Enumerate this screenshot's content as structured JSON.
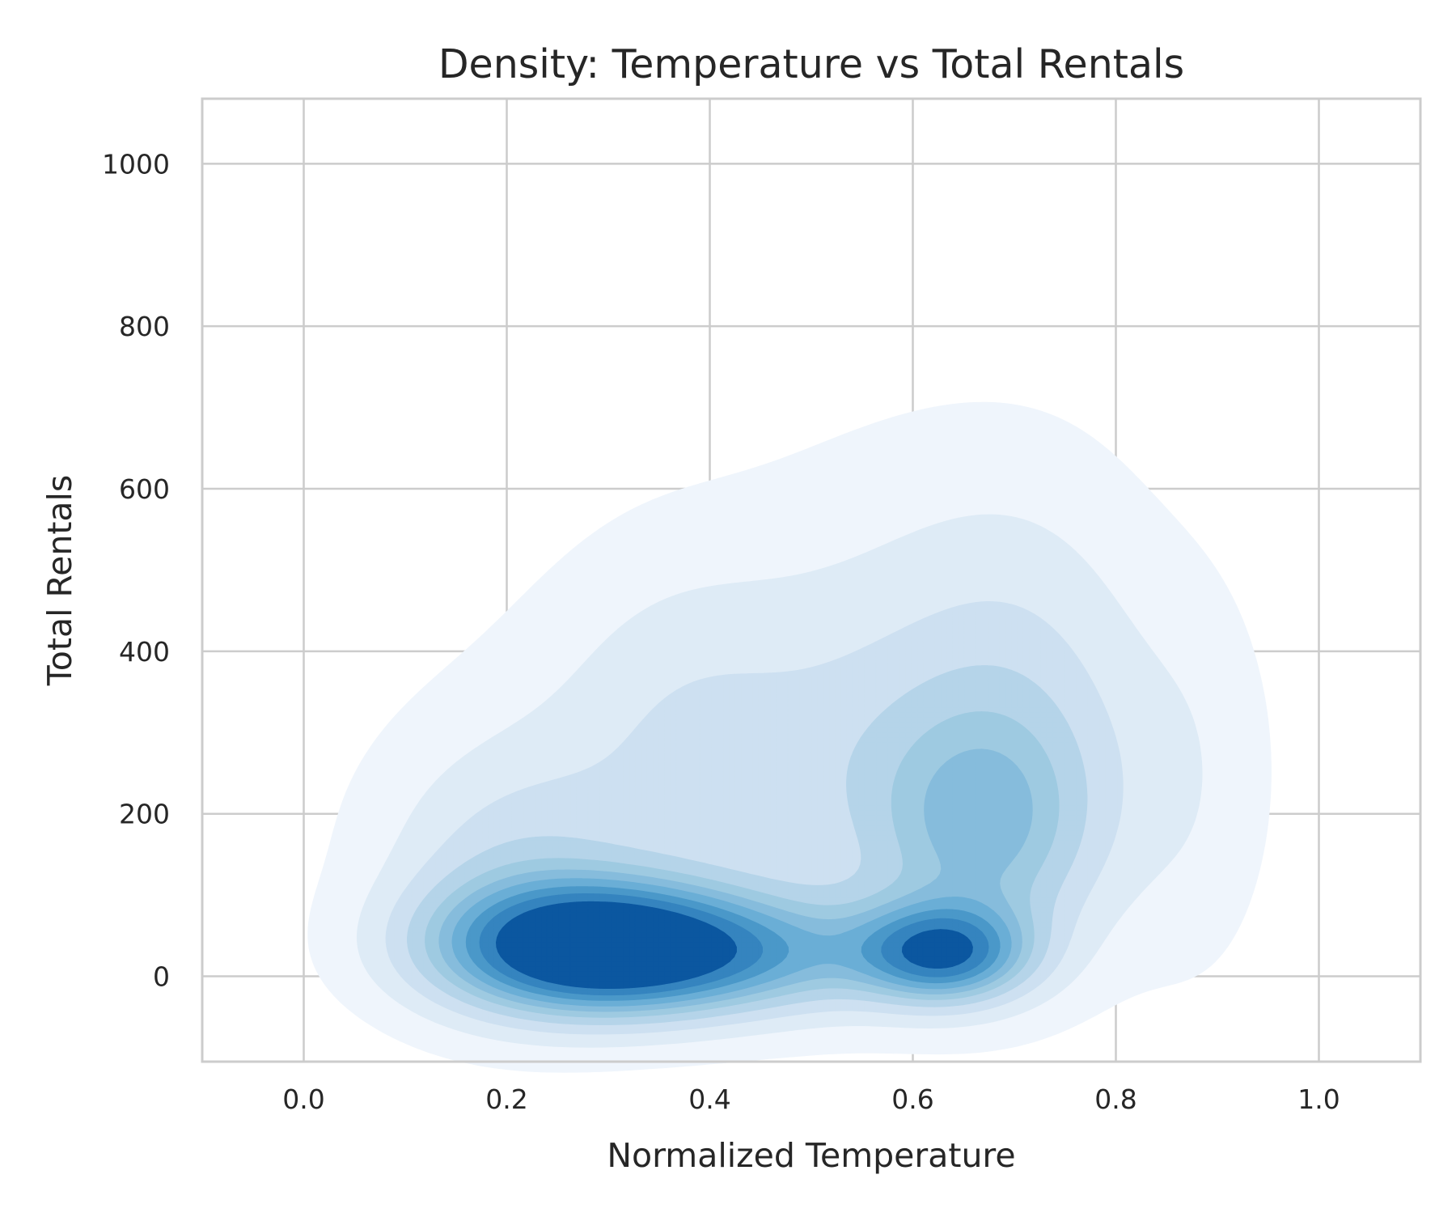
{
  "chart_data": {
    "type": "kde_contour",
    "title": "Density: Temperature vs Total Rentals",
    "xlabel": "Normalized Temperature",
    "ylabel": "Total Rentals",
    "xlim": [
      -0.1,
      1.1
    ],
    "ylim": [
      -105,
      1080
    ],
    "x_ticks": [
      0.0,
      0.2,
      0.4,
      0.6,
      0.8,
      1.0
    ],
    "x_tick_labels": [
      "0.0",
      "0.2",
      "0.4",
      "0.6",
      "0.8",
      "1.0"
    ],
    "y_ticks": [
      0,
      200,
      400,
      600,
      800,
      1000
    ],
    "y_tick_labels": [
      "0",
      "200",
      "400",
      "600",
      "800",
      "1000"
    ],
    "grid": true,
    "colormap": "Blues",
    "fill_colors": [
      "#eff5fc",
      "#deebf6",
      "#cde0f1",
      "#b5d4e9",
      "#9ecae1",
      "#86bcdc",
      "#6aaed6",
      "#4a98c9",
      "#3584bf",
      "#0b57a0"
    ],
    "modes": [
      {
        "x": 0.29,
        "y": 35,
        "sx": 0.105,
        "sy": 55,
        "rot": 0,
        "amp": 1.0
      },
      {
        "x": 0.46,
        "y": 25,
        "sx": 0.12,
        "sy": 50,
        "rot": 0,
        "amp": 0.35
      },
      {
        "x": 0.63,
        "y": 28,
        "sx": 0.055,
        "sy": 40,
        "rot": 0,
        "amp": 0.62
      },
      {
        "x": 0.67,
        "y": 175,
        "sx": 0.08,
        "sy": 110,
        "rot": 0,
        "amp": 0.35
      },
      {
        "x": 0.5,
        "y": 260,
        "sx": 0.2,
        "sy": 160,
        "rot": 0.55,
        "amp": 0.22
      },
      {
        "x": 0.2,
        "y": 120,
        "sx": 0.09,
        "sy": 110,
        "rot": 0.7,
        "amp": 0.22
      },
      {
        "x": 0.72,
        "y": 370,
        "sx": 0.09,
        "sy": 180,
        "rot": 0,
        "amp": 0.12
      },
      {
        "x": 0.6,
        "y": 520,
        "sx": 0.13,
        "sy": 150,
        "rot": 0,
        "amp": 0.06
      },
      {
        "x": 0.88,
        "y": 230,
        "sx": 0.05,
        "sy": 170,
        "rot": 0,
        "amp": 0.07
      },
      {
        "x": 0.36,
        "y": 350,
        "sx": 0.08,
        "sy": 150,
        "rot": 0.3,
        "amp": 0.06
      }
    ],
    "levels": [
      0.045,
      0.13,
      0.22,
      0.31,
      0.4,
      0.48,
      0.56,
      0.65,
      0.74,
      0.85
    ]
  }
}
